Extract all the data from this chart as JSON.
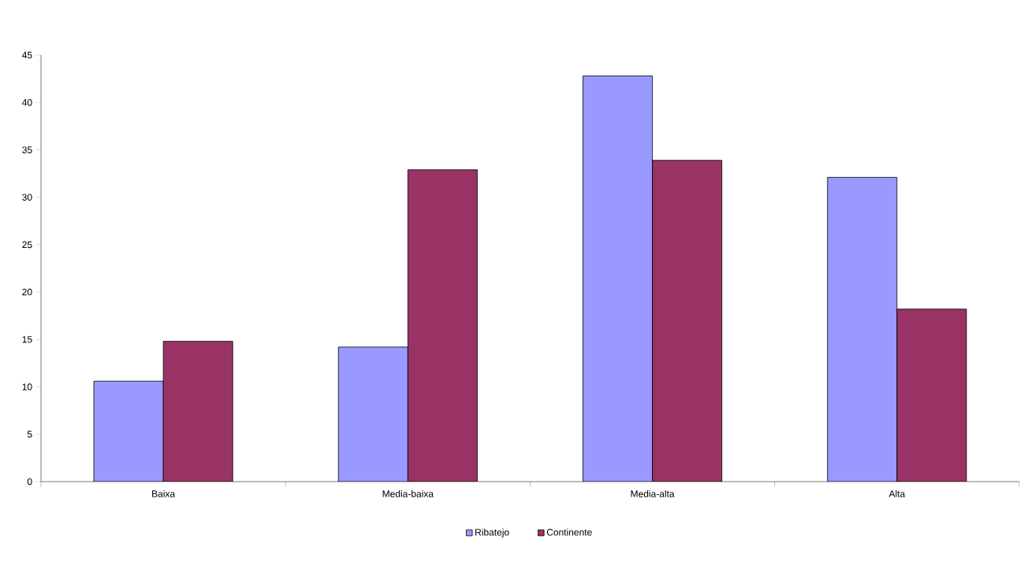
{
  "chart_data": {
    "type": "bar",
    "categories": [
      "Baixa",
      "Media-baixa",
      "Media-alta",
      "Alta"
    ],
    "series": [
      {
        "name": "Ribatejo",
        "color": "#9999ff",
        "values": [
          10.6,
          14.2,
          42.8,
          32.1
        ]
      },
      {
        "name": "Continente",
        "color": "#993366",
        "values": [
          14.8,
          32.9,
          33.9,
          18.2
        ]
      }
    ],
    "ylim": [
      0,
      45
    ],
    "yticks": [
      0,
      5,
      10,
      15,
      20,
      25,
      30,
      35,
      40,
      45
    ],
    "grid": false,
    "legend": "bottom"
  }
}
